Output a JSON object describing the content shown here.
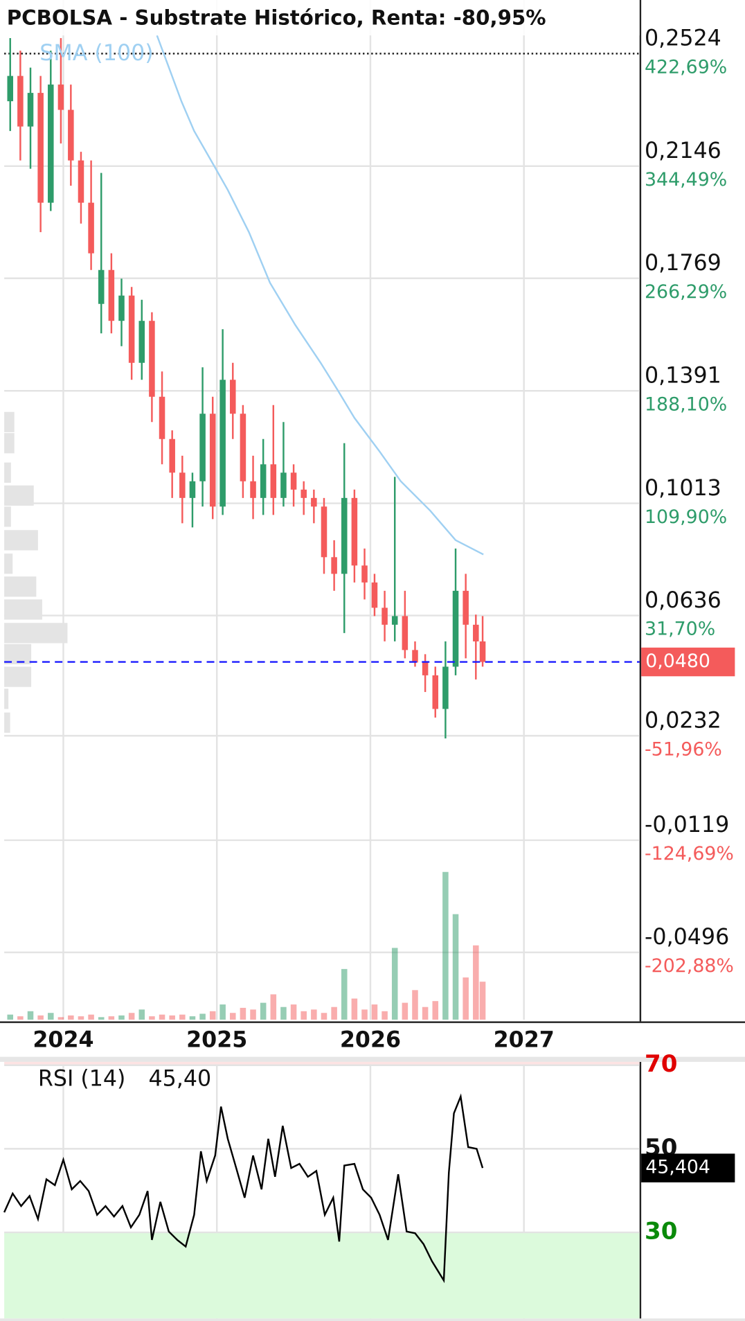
{
  "chart_data": [
    {
      "type": "candlestick",
      "title": "PCBOLSA - Substrate Histórico, Renta: -80,95%",
      "up_color": "#2e9c6a",
      "down_color": "#f45b5b",
      "x": [
        2023.654,
        2023.72,
        2023.786,
        2023.852,
        2023.918,
        2023.984,
        2024.049,
        2024.115,
        2024.181,
        2024.247,
        2024.313,
        2024.379,
        2024.445,
        2024.511,
        2024.577,
        2024.643,
        2024.709,
        2024.775,
        2024.841,
        2024.907,
        2024.973,
        2025.038,
        2025.104,
        2025.17,
        2025.236,
        2025.302,
        2025.368,
        2025.434,
        2025.5,
        2025.566,
        2025.632,
        2025.698,
        2025.764,
        2025.83,
        2025.896,
        2025.962,
        2026.027,
        2026.093,
        2026.159,
        2026.225,
        2026.291,
        2026.357,
        2026.423,
        2026.489,
        2026.555,
        2026.621,
        2026.687,
        2026.731
      ],
      "open": [
        0.2364,
        0.2449,
        0.2279,
        0.2392,
        0.2023,
        0.242,
        0.2335,
        0.2165,
        0.2023,
        0.1683,
        0.1797,
        0.1626,
        0.1711,
        0.1485,
        0.1626,
        0.1371,
        0.1229,
        0.1116,
        0.1031,
        0.1087,
        0.1314,
        0.1002,
        0.1428,
        0.1314,
        0.1087,
        0.1031,
        0.1144,
        0.1031,
        0.1116,
        0.1059,
        0.1031,
        0.1002,
        0.0832,
        0.0776,
        0.1031,
        0.0804,
        0.0747,
        0.0662,
        0.0605,
        0.0634,
        0.052,
        0.0478,
        0.0435,
        0.0322,
        0.0464,
        0.0719,
        0.0605,
        0.0549
      ],
      "high": [
        0.2576,
        0.2534,
        0.2477,
        0.2449,
        0.2534,
        0.2576,
        0.242,
        0.2194,
        0.2165,
        0.2123,
        0.1853,
        0.1768,
        0.174,
        0.1697,
        0.1655,
        0.1456,
        0.1258,
        0.1173,
        0.1116,
        0.147,
        0.1371,
        0.1598,
        0.1485,
        0.1343,
        0.1173,
        0.1229,
        0.1343,
        0.1286,
        0.1144,
        0.1087,
        0.1059,
        0.1031,
        0.0889,
        0.1215,
        0.1059,
        0.0861,
        0.0776,
        0.0719,
        0.1102,
        0.0719,
        0.0549,
        0.0506,
        0.0464,
        0.0549,
        0.0861,
        0.0776,
        0.0639,
        0.0634
      ],
      "low": [
        0.2264,
        0.2165,
        0.2137,
        0.1924,
        0.1995,
        0.2222,
        0.208,
        0.1953,
        0.1797,
        0.1584,
        0.1584,
        0.1541,
        0.1428,
        0.1428,
        0.1286,
        0.1144,
        0.1031,
        0.0946,
        0.0932,
        0.1002,
        0.096,
        0.0974,
        0.1229,
        0.1031,
        0.096,
        0.0974,
        0.0974,
        0.1002,
        0.1002,
        0.0974,
        0.0946,
        0.0776,
        0.0719,
        0.0577,
        0.0747,
        0.069,
        0.0634,
        0.0549,
        0.0549,
        0.0492,
        0.0464,
        0.0379,
        0.0293,
        0.0223,
        0.0435,
        0.0492,
        0.0421,
        0.0464
      ],
      "close": [
        0.2449,
        0.2279,
        0.2392,
        0.2023,
        0.242,
        0.2335,
        0.2165,
        0.2023,
        0.1853,
        0.1797,
        0.1626,
        0.1711,
        0.1485,
        0.1626,
        0.1371,
        0.1229,
        0.1116,
        0.1031,
        0.1087,
        0.1314,
        0.1002,
        0.1428,
        0.1314,
        0.1087,
        0.1031,
        0.1144,
        0.1031,
        0.1116,
        0.1059,
        0.1031,
        0.1002,
        0.0832,
        0.0776,
        0.1031,
        0.0804,
        0.0747,
        0.0662,
        0.0605,
        0.0634,
        0.052,
        0.0478,
        0.0435,
        0.0322,
        0.0464,
        0.0719,
        0.0605,
        0.0549,
        0.048
      ],
      "volume": [
        6,
        4,
        10,
        5,
        8,
        3,
        5,
        4,
        6,
        3,
        4,
        5,
        8,
        12,
        4,
        6,
        5,
        6,
        4,
        7,
        10,
        18,
        8,
        14,
        12,
        20,
        30,
        15,
        18,
        10,
        12,
        8,
        15,
        60,
        25,
        12,
        18,
        10,
        85,
        20,
        35,
        15,
        22,
        175,
        125,
        50,
        88,
        45
      ],
      "sma": {
        "name": "SMA (100)",
        "color": "#9fd0f2",
        "x": [
          2024.61,
          2024.769,
          2024.852,
          2024.962,
          2025.071,
          2025.209,
          2025.346,
          2025.511,
          2025.676,
          2025.786,
          2025.896,
          2026.06,
          2026.198,
          2026.39,
          2026.555,
          2026.736
        ],
        "values": [
          0.2585,
          0.2364,
          0.2264,
          0.2165,
          0.2066,
          0.1924,
          0.1754,
          0.1612,
          0.1485,
          0.1394,
          0.13,
          0.1187,
          0.1087,
          0.0988,
          0.0889,
          0.0841
        ]
      },
      "volume_profile": {
        "prices": [
          0.1286,
          0.1215,
          0.1116,
          0.1039,
          0.0968,
          0.0889,
          0.081,
          0.0733,
          0.0656,
          0.0577,
          0.0506,
          0.043,
          0.0356,
          0.0276
        ],
        "values": [
          12,
          12,
          8,
          35,
          8,
          40,
          10,
          38,
          45,
          75,
          32,
          32,
          5,
          7
        ]
      },
      "xlim": [
        2023.615,
        2027.753
      ],
      "xticks": [
        2024,
        2025,
        2026,
        2027
      ],
      "ylim": [
        -0.0722,
        0.2585
      ],
      "yticks": [
        {
          "value": 0.2524,
          "label": "0,2524"
        },
        {
          "value": 0.2146,
          "label": "0,2146"
        },
        {
          "value": 0.1769,
          "label": "0,1769"
        },
        {
          "value": 0.1391,
          "label": "0,1391"
        },
        {
          "value": 0.1013,
          "label": "0,1013"
        },
        {
          "value": 0.0636,
          "label": "0,0636"
        },
        {
          "value": 0.0232,
          "label": "0,0232"
        },
        {
          "value": -0.0119,
          "label": "-0,0119"
        },
        {
          "value": -0.0496,
          "label": "-0,0496"
        }
      ],
      "ytick_changes": [
        "422,69%",
        "344,49%",
        "266,29%",
        "188,10%",
        "109,90%",
        "31,70%",
        "-51,96%",
        "-124,69%",
        "-202,88%"
      ],
      "max_line": 0.2524,
      "last_price": {
        "value": 0.048,
        "label": "0,0480",
        "color": "#f45b5b"
      },
      "grid": true
    },
    {
      "type": "line",
      "title": "RSI (14)",
      "legend_value": "45,40",
      "color": "#000000",
      "x": [
        2023.615,
        2023.67,
        2023.725,
        2023.78,
        2023.835,
        2023.89,
        2023.945,
        2024.0,
        2024.055,
        2024.11,
        2024.165,
        2024.22,
        2024.275,
        2024.33,
        2024.385,
        2024.44,
        2024.495,
        2024.549,
        2024.577,
        2024.632,
        2024.687,
        2024.742,
        2024.797,
        2024.852,
        2024.896,
        2024.934,
        2024.989,
        2025.027,
        2025.071,
        2025.126,
        2025.181,
        2025.236,
        2025.291,
        2025.335,
        2025.379,
        2025.429,
        2025.484,
        2025.538,
        2025.593,
        2025.648,
        2025.703,
        2025.758,
        2025.797,
        2025.83,
        2025.896,
        2025.951,
        2026.005,
        2026.06,
        2026.115,
        2026.181,
        2026.236,
        2026.291,
        2026.346,
        2026.401,
        2026.478,
        2026.511,
        2026.544,
        2026.588,
        2026.637,
        2026.692,
        2026.731
      ],
      "values": [
        34.8,
        39.3,
        36.3,
        38.7,
        33.2,
        42.7,
        41.3,
        47.4,
        40.3,
        42.3,
        39.9,
        34.2,
        36.3,
        33.8,
        36.3,
        31.2,
        34.2,
        39.9,
        28.2,
        37.3,
        30.2,
        28.2,
        26.6,
        34.2,
        49.4,
        42.3,
        48.4,
        60.1,
        52.4,
        45.4,
        38.3,
        48.4,
        40.3,
        52.4,
        43.3,
        55.5,
        45.4,
        46.4,
        43.3,
        44.7,
        34.2,
        38.3,
        27.8,
        46.0,
        46.4,
        40.3,
        38.3,
        34.2,
        28.2,
        43.9,
        30.2,
        29.8,
        27.2,
        23.1,
        18.5,
        44.3,
        58.5,
        62.5,
        50.4,
        50.0,
        45.404
      ],
      "last_value_label": "45,404",
      "xlim": [
        2023.615,
        2027.753
      ],
      "ylim": [
        9.4,
        70.8
      ],
      "yticks": [
        30,
        50,
        70
      ],
      "ytick_colors": [
        "#0a8a0a",
        "#111111",
        "#e00000"
      ],
      "oversold_color": "#dcfadc",
      "overbought_color": "#fde3e3",
      "grid": true
    }
  ]
}
